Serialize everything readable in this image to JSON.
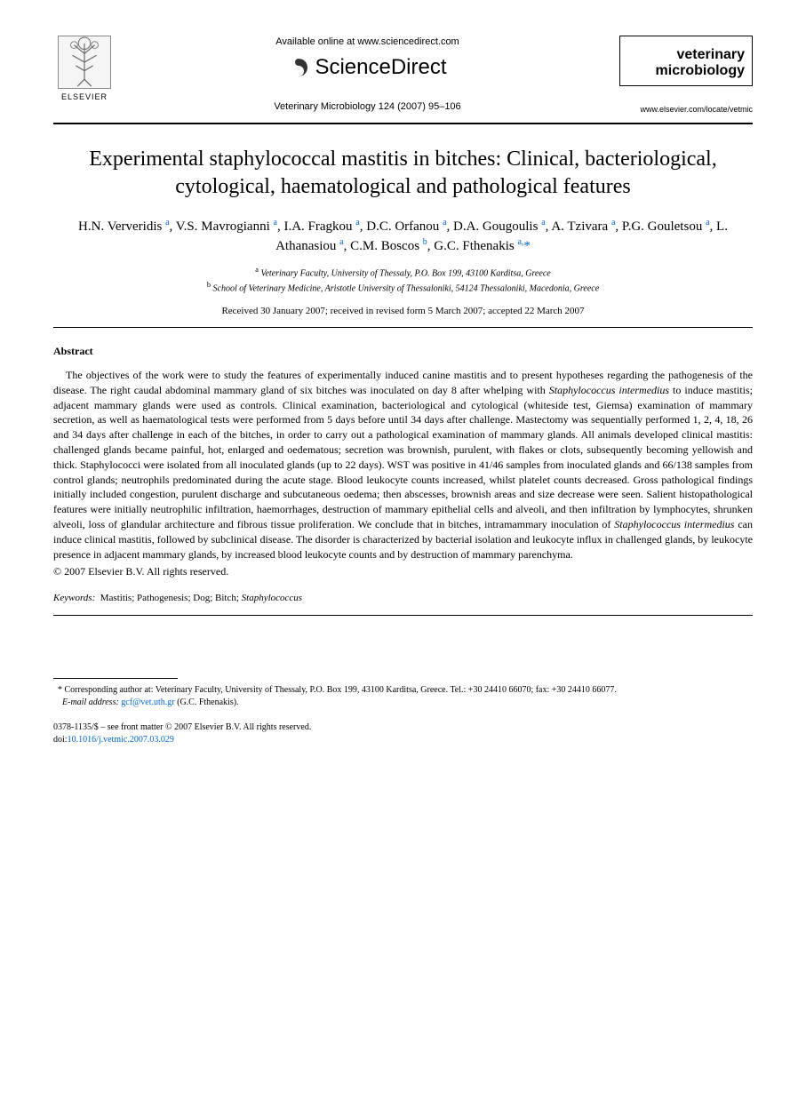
{
  "header": {
    "elsevier_label": "ELSEVIER",
    "available_online": "Available online at www.sciencedirect.com",
    "sciencedirect": "ScienceDirect",
    "citation": "Veterinary Microbiology 124 (2007) 95–106",
    "journal_name_line1": "veterinary",
    "journal_name_line2": "microbiology",
    "journal_url": "www.elsevier.com/locate/vetmic"
  },
  "title": "Experimental staphylococcal mastitis in bitches: Clinical, bacteriological, cytological, haematological and pathological features",
  "authors_html": "H.N. Ververidis <sup>a</sup>, V.S. Mavrogianni <sup>a</sup>, I.A. Fragkou <sup>a</sup>, D.C. Orfanou <sup>a</sup>, D.A. Gougoulis <sup>a</sup>, A. Tzivara <sup>a</sup>, P.G. Gouletsou <sup>a</sup>, L. Athanasiou <sup>a</sup>, C.M. Boscos <sup>b</sup>, G.C. Fthenakis <sup>a,</sup><span class='star'>*</span>",
  "affiliations": {
    "a": "Veterinary Faculty, University of Thessaly, P.O. Box 199, 43100 Karditsa, Greece",
    "b": "School of Veterinary Medicine, Aristotle University of Thessaloniki, 54124 Thessaloniki, Macedonia, Greece"
  },
  "dates": "Received 30 January 2007; received in revised form 5 March 2007; accepted 22 March 2007",
  "abstract_heading": "Abstract",
  "abstract_body_html": "The objectives of the work were to study the features of experimentally induced canine mastitis and to present hypotheses regarding the pathogenesis of the disease. The right caudal abdominal mammary gland of six bitches was inoculated on day 8 after whelping with <em>Staphylococcus intermedius</em> to induce mastitis; adjacent mammary glands were used as controls. Clinical examination, bacteriological and cytological (whiteside test, Giemsa) examination of mammary secretion, as well as haematological tests were performed from 5 days before until 34 days after challenge. Mastectomy was sequentially performed 1, 2, 4, 18, 26 and 34 days after challenge in each of the bitches, in order to carry out a pathological examination of mammary glands. All animals developed clinical mastitis: challenged glands became painful, hot, enlarged and oedematous; secretion was brownish, purulent, with flakes or clots, subsequently becoming yellowish and thick. Staphylococci were isolated from all inoculated glands (up to 22 days). WST was positive in 41/46 samples from inoculated glands and 66/138 samples from control glands; neutrophils predominated during the acute stage. Blood leukocyte counts increased, whilst platelet counts decreased. Gross pathological findings initially included congestion, purulent discharge and subcutaneous oedema; then abscesses, brownish areas and size decrease were seen. Salient histopathological features were initially neutrophilic infiltration, haemorrhages, destruction of mammary epithelial cells and alveoli, and then infiltration by lymphocytes, shrunken alveoli, loss of glandular architecture and fibrous tissue proliferation. We conclude that in bitches, intramammary inoculation of <em>Staphylococcus intermedius</em> can induce clinical mastitis, followed by subclinical disease. The disorder is characterized by bacterial isolation and leukocyte influx in challenged glands, by leukocyte presence in adjacent mammary glands, by increased blood leukocyte counts and by destruction of mammary parenchyma.",
  "copyright": "© 2007 Elsevier B.V. All rights reserved.",
  "keywords_label": "Keywords:",
  "keywords_html": "Mastitis; Pathogenesis; Dog; Bitch; <em>Staphylococcus</em>",
  "footnote": {
    "corresponding_html": "Corresponding author at: Veterinary Faculty, University of Thessaly, P.O. Box 199, 43100 Karditsa, Greece. Tel.: +30 24410 66070; fax: +30 24410 66077.",
    "email_label": "E-mail address:",
    "email": "gcf@vet.uth.gr",
    "email_owner": "(G.C. Fthenakis)."
  },
  "footer": {
    "issn_line": "0378-1135/$ – see front matter © 2007 Elsevier B.V. All rights reserved.",
    "doi_label": "doi:",
    "doi": "10.1016/j.vetmic.2007.03.029"
  },
  "colors": {
    "link": "#0066cc",
    "text": "#000000",
    "background": "#ffffff"
  },
  "typography": {
    "title_fontsize": 24,
    "authors_fontsize": 15,
    "body_fontsize": 12,
    "footnote_fontsize": 10
  }
}
